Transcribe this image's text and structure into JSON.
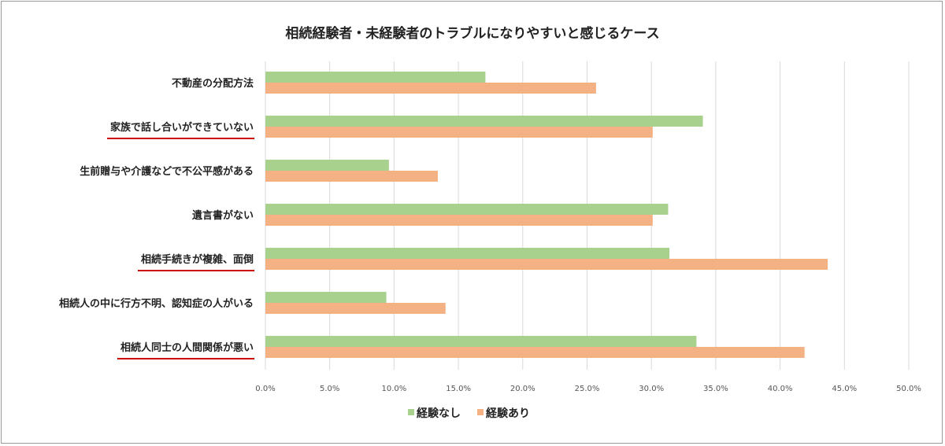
{
  "chart_data": {
    "type": "bar",
    "orientation": "horizontal",
    "title": "相続経験者・未経験者のトラブルになりやすいと感じるケース",
    "categories": [
      "不動産の分配方法",
      "家族で話し合いができていない",
      "生前贈与や介護などで不公平感がある",
      "遺言書がない",
      "相続手続きが複雑、面倒",
      "相続人の中に行方不明、認知症の人がいる",
      "相続人同士の人間関係が悪い"
    ],
    "highlighted_categories": [
      "家族で話し合いができていない",
      "相続手続きが複雑、面倒",
      "相続人同士の人間関係が悪い"
    ],
    "highlight_color": "#cc0000",
    "series": [
      {
        "name": "経験なし",
        "color": "#a9d18e",
        "values": [
          17.1,
          34.0,
          9.6,
          31.3,
          31.4,
          9.4,
          33.5
        ]
      },
      {
        "name": "経験あり",
        "color": "#f4b183",
        "values": [
          25.7,
          30.1,
          13.4,
          30.1,
          43.7,
          14.0,
          41.9
        ]
      }
    ],
    "xlim": [
      0,
      50
    ],
    "xticks": [
      "0.0%",
      "5.0%",
      "10.0%",
      "15.0%",
      "20.0%",
      "25.0%",
      "30.0%",
      "35.0%",
      "40.0%",
      "45.0%",
      "50.0%"
    ],
    "grid": "vertical",
    "legend": "bottom",
    "unit": "%"
  }
}
